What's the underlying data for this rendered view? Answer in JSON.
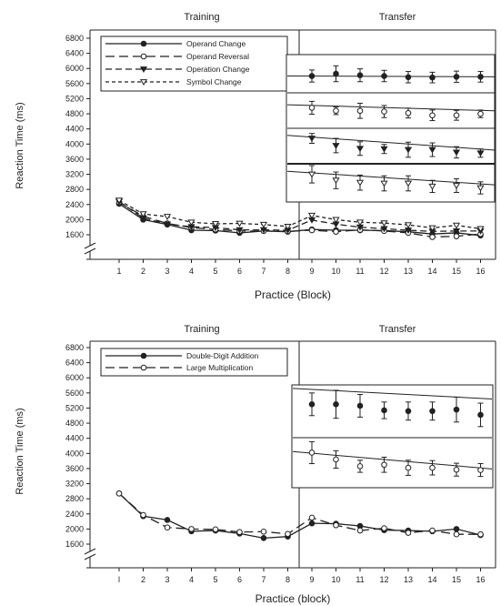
{
  "chart_data": [
    {
      "type": "line",
      "phase_labels": [
        "Training",
        "Transfer"
      ],
      "xlabel": "Practice (Block)",
      "ylabel": "Reaction Time (ms)",
      "ylim": [
        1600,
        6800
      ],
      "yticks": [
        1600,
        2000,
        2400,
        2800,
        3200,
        3600,
        4000,
        4400,
        4800,
        5200,
        5600,
        6000,
        6400,
        6800
      ],
      "y_axis_break": true,
      "x": [
        1,
        2,
        3,
        4,
        5,
        6,
        7,
        8,
        9,
        10,
        11,
        12,
        13,
        14,
        15,
        16
      ],
      "phase_boundary_after_block": 8,
      "legend_position": "top-left",
      "series": [
        {
          "name": "Operand Change",
          "dash": "solid",
          "marker": "filled-circle",
          "values": [
            2420,
            2000,
            1870,
            1720,
            1710,
            1650,
            1700,
            1680,
            1740,
            1720,
            1720,
            1710,
            1680,
            1620,
            1650,
            1580
          ]
        },
        {
          "name": "Operand Reversal",
          "dash": "long-dash",
          "marker": "open-circle",
          "values": [
            2460,
            2090,
            1900,
            1790,
            1740,
            1700,
            1700,
            1690,
            1720,
            1680,
            1730,
            1700,
            1650,
            1540,
            1560,
            1620
          ]
        },
        {
          "name": "Operation Change",
          "dash": "dash",
          "marker": "filled-triangle",
          "values": [
            2480,
            2040,
            1880,
            1810,
            1790,
            1730,
            1730,
            1720,
            1990,
            1880,
            1800,
            1760,
            1720,
            1690,
            1700,
            1700
          ]
        },
        {
          "name": "Symbol Change",
          "dash": "short-dash",
          "marker": "open-triangle",
          "values": [
            2510,
            2150,
            2080,
            1930,
            1890,
            1900,
            1870,
            1820,
            2110,
            2000,
            1930,
            1910,
            1860,
            1780,
            1850,
            1760
          ]
        }
      ],
      "inset": {
        "rows": [
          {
            "means": [
              5800,
              5860,
              5820,
              5800,
              5770,
              5760,
              5780,
              5780
            ],
            "errors": [
              160,
              210,
              170,
              150,
              150,
              140,
              150,
              140
            ]
          },
          {
            "means": [
              4960,
              4880,
              4880,
              4860,
              4820,
              4760,
              4760,
              4800
            ],
            "errors": [
              170,
              100,
              200,
              160,
              130,
              140,
              130,
              100
            ]
          },
          {
            "means": [
              4150,
              3960,
              3880,
              3870,
              3850,
              3850,
              3780,
              3760
            ],
            "errors": [
              130,
              190,
              180,
              120,
              200,
              180,
              150,
              110
            ]
          },
          {
            "means": [
              3200,
              3040,
              2980,
              2960,
              2960,
              2880,
              2900,
              2840
            ],
            "errors": [
              230,
              220,
              200,
              200,
              200,
              160,
              180,
              160
            ]
          }
        ]
      }
    },
    {
      "type": "line",
      "phase_labels": [
        "Training",
        "Transfer"
      ],
      "xlabel": "Practice (block)",
      "ylabel": "Reaction Time (ms)",
      "ylim": [
        1600,
        6800
      ],
      "yticks": [
        1600,
        2000,
        2400,
        2800,
        3200,
        3600,
        4000,
        4400,
        4800,
        5200,
        5600,
        6000,
        6400,
        6800
      ],
      "y_axis_break": true,
      "x_tick_labels": [
        "l",
        "2",
        "3",
        "4",
        "5",
        "6",
        "7",
        "8",
        "9",
        "10",
        "11",
        "12",
        "13",
        "14",
        "15",
        "16"
      ],
      "x": [
        1,
        2,
        3,
        4,
        5,
        6,
        7,
        8,
        9,
        10,
        11,
        12,
        13,
        14,
        15,
        16
      ],
      "phase_boundary_after_block": 8,
      "legend_position": "top-left",
      "series": [
        {
          "name": "Double-Digit Addition",
          "dash": "solid",
          "marker": "filled-circle",
          "values": [
            2940,
            2340,
            2240,
            1940,
            1960,
            1880,
            1760,
            1800,
            2150,
            2140,
            2080,
            1970,
            1960,
            1940,
            2000,
            1840
          ]
        },
        {
          "name": "Large Multiplication",
          "dash": "long-dash",
          "marker": "open-circle",
          "values": [
            2940,
            2370,
            2040,
            2000,
            1990,
            1920,
            1930,
            1870,
            2300,
            2100,
            1960,
            2020,
            1900,
            1960,
            1860,
            1860
          ]
        }
      ],
      "inset": {
        "rows": [
          {
            "means": [
              5300,
              5300,
              5260,
              5140,
              5120,
              5120,
              5160,
              5020
            ],
            "errors": [
              300,
              370,
              300,
              220,
              240,
              240,
              330,
              310
            ]
          },
          {
            "means": [
              4020,
              3840,
              3660,
              3700,
              3620,
              3620,
              3570,
              3560
            ],
            "errors": [
              290,
              230,
              160,
              200,
              200,
              190,
              170,
              170
            ]
          }
        ]
      }
    }
  ]
}
